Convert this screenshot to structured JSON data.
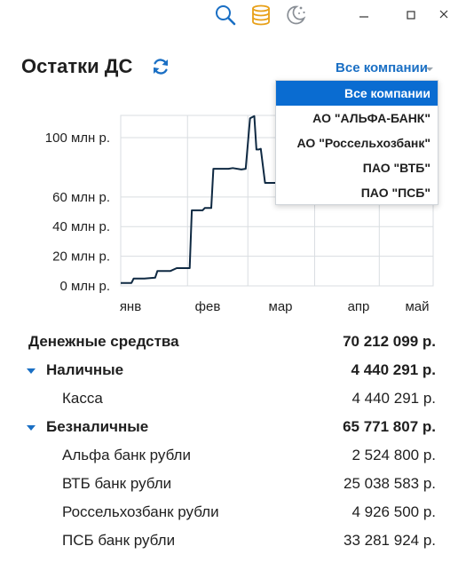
{
  "header": {
    "title": "Остатки ДС"
  },
  "company_filter": {
    "selected": "Все компании",
    "options": [
      "Все компании",
      "АО \"АЛЬФА-БАНК\"",
      "АО \"Россельхозбанк\"",
      "ПАО \"ВТБ\"",
      "ПАО \"ПСБ\""
    ]
  },
  "chart_data": {
    "type": "line",
    "x_ticks": [
      "янв",
      "фев",
      "мар",
      "апр",
      "май"
    ],
    "y_ticks": [
      "0 млн р.",
      "20 млн р.",
      "40 млн р.",
      "60 млн р.",
      "100 млн р."
    ],
    "y_tick_values": [
      0,
      20,
      40,
      60,
      100
    ],
    "ylim": [
      0,
      115
    ],
    "x_range_days": [
      0,
      145
    ],
    "grid": true,
    "series": [
      {
        "color": "#0f2942",
        "points": [
          [
            0,
            2
          ],
          [
            5,
            2
          ],
          [
            6,
            5
          ],
          [
            11,
            5
          ],
          [
            16,
            5.5
          ],
          [
            17,
            10
          ],
          [
            23,
            10
          ],
          [
            26,
            12
          ],
          [
            32,
            12
          ],
          [
            33,
            51
          ],
          [
            38,
            51
          ],
          [
            39,
            52.5
          ],
          [
            42,
            52.5
          ],
          [
            43,
            79
          ],
          [
            50,
            79
          ],
          [
            52,
            79.5
          ],
          [
            56,
            78.5
          ],
          [
            58,
            79
          ],
          [
            60,
            113
          ],
          [
            62,
            114.5
          ],
          [
            63,
            92
          ],
          [
            64,
            92
          ],
          [
            65,
            92.5
          ],
          [
            67,
            69.5
          ],
          [
            74,
            69.5
          ],
          [
            76,
            70
          ]
        ]
      }
    ]
  },
  "balances": {
    "total": {
      "label": "Денежные средства",
      "value": "70 212 099 р."
    },
    "cash": {
      "label": "Наличные",
      "value": "4 440 291 р.",
      "items": [
        {
          "label": "Касса",
          "value": "4 440 291 р."
        }
      ]
    },
    "noncash": {
      "label": "Безналичные",
      "value": "65 771 807 р.",
      "items": [
        {
          "label": "Альфа банк рубли",
          "value": "2 524 800 р."
        },
        {
          "label": "ВТБ банк рубли",
          "value": "25 038 583 р."
        },
        {
          "label": "Россельхозбанк рубли",
          "value": "4 926 500 р."
        },
        {
          "label": "ПСБ банк рубли",
          "value": "33 281 924 р."
        }
      ]
    }
  }
}
